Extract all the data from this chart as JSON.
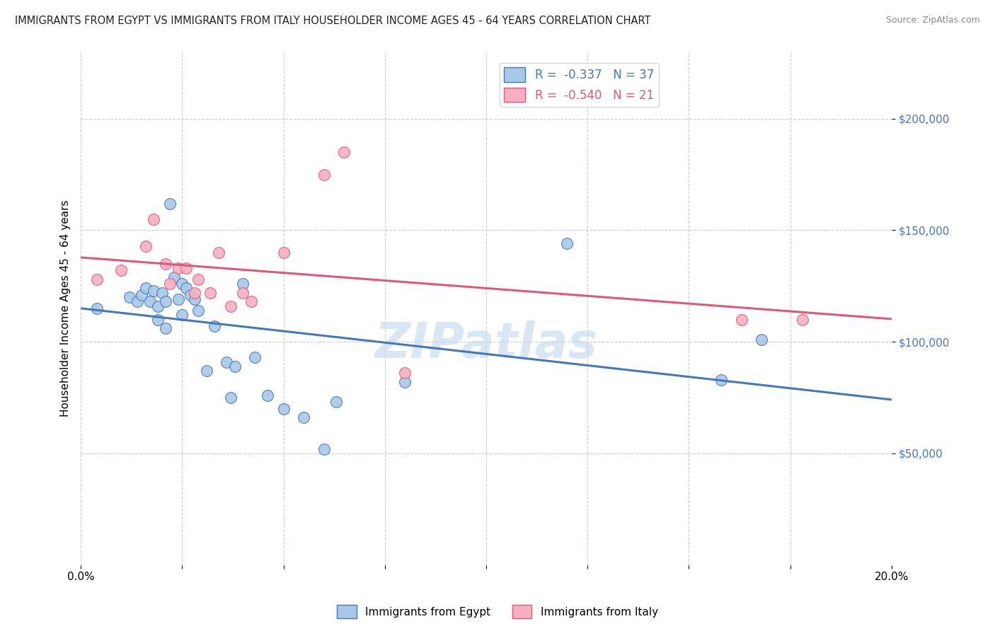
{
  "title": "IMMIGRANTS FROM EGYPT VS IMMIGRANTS FROM ITALY HOUSEHOLDER INCOME AGES 45 - 64 YEARS CORRELATION CHART",
  "source": "Source: ZipAtlas.com",
  "ylabel": "Householder Income Ages 45 - 64 years",
  "xmin": 0.0,
  "xmax": 0.2,
  "ymin": 0,
  "ymax": 230000,
  "yticks": [
    50000,
    100000,
    150000,
    200000
  ],
  "ytick_labels": [
    "$50,000",
    "$100,000",
    "$150,000",
    "$200,000"
  ],
  "legend_R_egypt": "R =  -0.337",
  "legend_N_egypt": "N = 37",
  "legend_R_italy": "R =  -0.540",
  "legend_N_italy": "N = 21",
  "egypt_color": "#a8c8e8",
  "egypt_line_color": "#4477bb",
  "italy_color": "#f8b0c0",
  "italy_line_color": "#e05878",
  "watermark": "ZIPatlas",
  "egypt_x": [
    0.004,
    0.012,
    0.014,
    0.015,
    0.016,
    0.017,
    0.018,
    0.019,
    0.019,
    0.02,
    0.021,
    0.021,
    0.022,
    0.023,
    0.024,
    0.025,
    0.025,
    0.026,
    0.027,
    0.028,
    0.029,
    0.031,
    0.033,
    0.036,
    0.037,
    0.038,
    0.04,
    0.043,
    0.046,
    0.05,
    0.055,
    0.06,
    0.063,
    0.08,
    0.12,
    0.158,
    0.168
  ],
  "egypt_y": [
    115000,
    120000,
    118000,
    121000,
    124000,
    118000,
    123000,
    116000,
    110000,
    122000,
    118000,
    106000,
    162000,
    129000,
    119000,
    126000,
    112000,
    124000,
    121000,
    119000,
    114000,
    87000,
    107000,
    91000,
    75000,
    89000,
    126000,
    93000,
    76000,
    70000,
    66000,
    52000,
    73000,
    82000,
    144000,
    83000,
    101000
  ],
  "italy_x": [
    0.004,
    0.01,
    0.016,
    0.018,
    0.021,
    0.022,
    0.024,
    0.026,
    0.028,
    0.029,
    0.032,
    0.034,
    0.037,
    0.04,
    0.042,
    0.05,
    0.06,
    0.065,
    0.08,
    0.163,
    0.178
  ],
  "italy_y": [
    128000,
    132000,
    143000,
    155000,
    135000,
    126000,
    133000,
    133000,
    122000,
    128000,
    122000,
    140000,
    116000,
    122000,
    118000,
    140000,
    175000,
    185000,
    86000,
    110000,
    110000
  ],
  "bottom_tick_values": [
    0.0,
    0.025,
    0.05,
    0.075,
    0.1,
    0.125,
    0.15,
    0.175,
    0.2
  ],
  "grid_color": "#cccccc",
  "background_color": "#ffffff"
}
